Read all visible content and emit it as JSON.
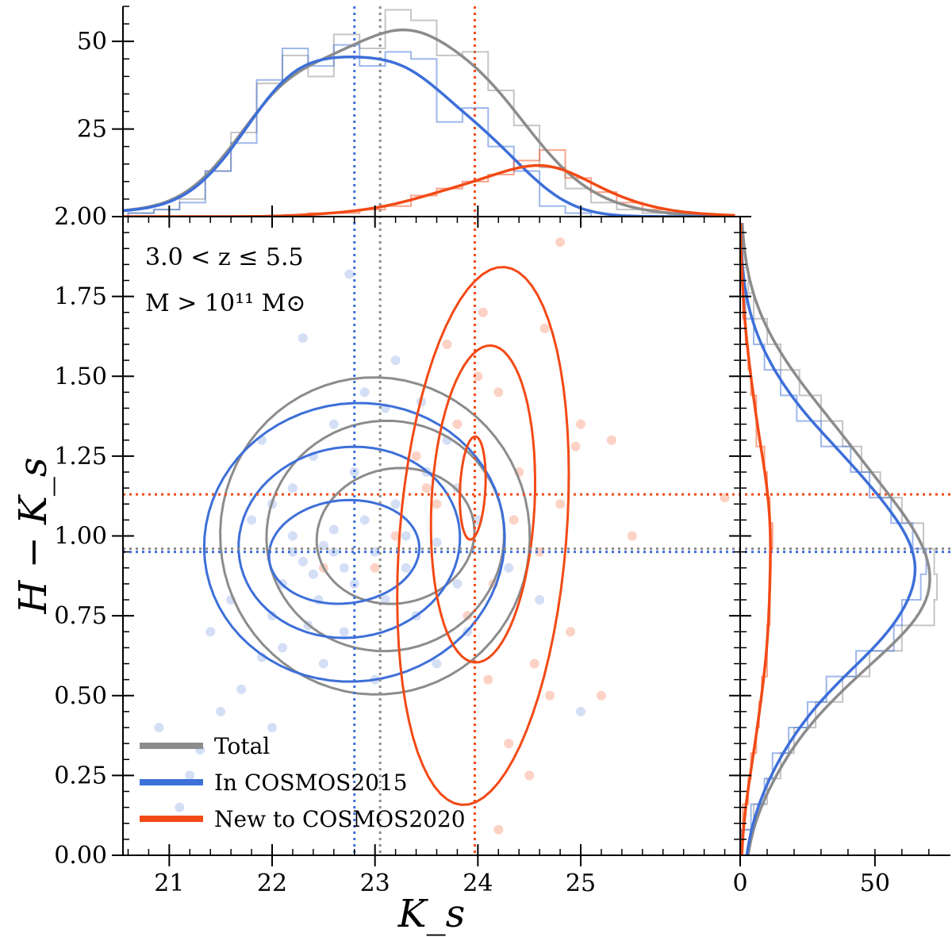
{
  "chart_data": {
    "type": "scatter",
    "xlabel": "K_s",
    "ylabel": "H − K_s",
    "xlim": [
      20.55,
      26.55
    ],
    "ylim": [
      0.0,
      2.0
    ],
    "xticks": [
      "21",
      "22",
      "23",
      "24",
      "25"
    ],
    "yticks": [
      "0.00",
      "0.25",
      "0.50",
      "0.75",
      "1.00",
      "1.25",
      "1.50",
      "1.75",
      "2.00"
    ],
    "annotation": [
      "3.0 < z ≤ 5.5",
      "M > 10¹¹ M⊙"
    ],
    "grid": false,
    "legend_position": "bottom-left",
    "colors": {
      "total": "#8c8c8c",
      "cosmos2015": "#3d6fd8",
      "new2020": "#f24a16"
    },
    "series": [
      {
        "name": "Total",
        "color": "#8c8c8c",
        "median_x": 23.05,
        "median_y": 0.96
      },
      {
        "name": "In COSMOS2015",
        "color": "#3d6fd8",
        "median_x": 22.8,
        "median_y": 0.95
      },
      {
        "name": "New to COSMOS2020",
        "color": "#f24a16",
        "median_x": 23.97,
        "median_y": 1.13
      }
    ],
    "scatter_blue": [
      [
        21.3,
        0.33
      ],
      [
        21.5,
        0.45
      ],
      [
        21.7,
        0.52
      ],
      [
        21.9,
        0.62
      ],
      [
        22.0,
        0.75
      ],
      [
        22.1,
        0.85
      ],
      [
        22.2,
        0.95
      ],
      [
        22.3,
        0.92
      ],
      [
        22.4,
        0.88
      ],
      [
        22.5,
        0.97
      ],
      [
        22.6,
        1.02
      ],
      [
        22.7,
        0.9
      ],
      [
        22.8,
        0.85
      ],
      [
        22.9,
        1.05
      ],
      [
        23.0,
        0.95
      ],
      [
        23.1,
        0.8
      ],
      [
        23.2,
        1.1
      ],
      [
        23.3,
        0.9
      ],
      [
        23.4,
        0.75
      ],
      [
        23.5,
        1.2
      ],
      [
        23.6,
        0.98
      ],
      [
        23.7,
        1.3
      ],
      [
        23.8,
        0.85
      ],
      [
        22.2,
        1.15
      ],
      [
        22.4,
        1.25
      ],
      [
        22.6,
        1.35
      ],
      [
        22.9,
        1.45
      ],
      [
        23.2,
        1.55
      ],
      [
        22.1,
        0.65
      ],
      [
        22.5,
        0.6
      ],
      [
        23.0,
        0.55
      ],
      [
        21.8,
        1.05
      ],
      [
        21.6,
        0.8
      ],
      [
        21.9,
        1.3
      ],
      [
        22.3,
        1.62
      ],
      [
        22.0,
        0.4
      ],
      [
        21.2,
        0.25
      ],
      [
        22.7,
        0.7
      ],
      [
        23.3,
        1.0
      ],
      [
        24.0,
        1.05
      ],
      [
        24.3,
        0.9
      ],
      [
        24.6,
        0.8
      ],
      [
        25.0,
        0.45
      ],
      [
        21.4,
        0.7
      ],
      [
        22.8,
        1.2
      ],
      [
        23.1,
        1.4
      ],
      [
        23.6,
        0.6
      ],
      [
        22.2,
        1.0
      ],
      [
        22.45,
        0.8
      ],
      [
        23.8,
        1.15
      ],
      [
        20.9,
        0.4
      ],
      [
        21.1,
        0.15
      ],
      [
        22.0,
        1.1
      ],
      [
        23.9,
        0.7
      ],
      [
        22.6,
        0.95
      ],
      [
        22.35,
        0.72
      ],
      [
        23.45,
        1.42
      ],
      [
        22.75,
        1.82
      ]
    ],
    "scatter_orange": [
      [
        23.0,
        0.9
      ],
      [
        23.2,
        1.0
      ],
      [
        23.4,
        1.25
      ],
      [
        23.6,
        1.1
      ],
      [
        23.8,
        1.35
      ],
      [
        24.0,
        1.5
      ],
      [
        24.2,
        1.45
      ],
      [
        24.4,
        1.2
      ],
      [
        24.6,
        0.95
      ],
      [
        24.8,
        1.1
      ],
      [
        25.0,
        1.35
      ],
      [
        23.9,
        0.75
      ],
      [
        24.1,
        0.55
      ],
      [
        24.3,
        0.35
      ],
      [
        24.5,
        0.25
      ],
      [
        24.7,
        0.5
      ],
      [
        24.9,
        0.7
      ],
      [
        23.7,
        1.6
      ],
      [
        24.05,
        1.7
      ],
      [
        24.65,
        1.65
      ],
      [
        25.3,
        1.3
      ],
      [
        25.5,
        1.0
      ],
      [
        26.4,
        1.12
      ],
      [
        24.2,
        0.08
      ],
      [
        25.2,
        0.5
      ],
      [
        24.8,
        1.92
      ],
      [
        24.95,
        1.28
      ],
      [
        23.5,
        1.15
      ],
      [
        22.5,
        0.9
      ],
      [
        24.35,
        1.05
      ],
      [
        24.55,
        0.6
      ],
      [
        24.15,
        0.85
      ]
    ],
    "top_hist": {
      "ylim": [
        0,
        60
      ],
      "yticks": [
        "2.00",
        "25",
        "50"
      ],
      "bin_edges": [
        20.6,
        20.85,
        21.1,
        21.35,
        21.6,
        21.85,
        22.1,
        22.35,
        22.6,
        22.85,
        23.1,
        23.35,
        23.6,
        23.85,
        24.1,
        24.35,
        24.6,
        24.85,
        25.1,
        25.35,
        25.6,
        25.85,
        26.1,
        26.35,
        26.55
      ],
      "total": [
        1,
        2,
        5,
        13,
        24,
        38,
        46,
        40,
        52,
        48,
        59,
        56,
        46,
        47,
        36,
        26,
        14,
        8,
        4,
        2,
        1,
        0.5,
        0.3,
        0
      ],
      "cosmos2015": [
        1,
        2,
        4,
        13,
        21,
        39,
        48,
        43,
        49,
        43,
        47,
        45,
        27,
        31,
        20,
        13,
        3,
        1,
        0,
        0,
        0,
        0,
        0,
        0
      ],
      "new2020": [
        0,
        0,
        0,
        0,
        0,
        0,
        0,
        1,
        1,
        2,
        3,
        6,
        8,
        10,
        12,
        16,
        19,
        11,
        7,
        4,
        2,
        1,
        0.5,
        0
      ]
    },
    "right_hist": {
      "xlim": [
        0,
        78
      ],
      "xticks": [
        "0",
        "50"
      ],
      "bin_edges": [
        0.0,
        0.08,
        0.16,
        0.24,
        0.32,
        0.4,
        0.48,
        0.56,
        0.64,
        0.72,
        0.8,
        0.88,
        0.96,
        1.04,
        1.12,
        1.2,
        1.28,
        1.36,
        1.44,
        1.52,
        1.6,
        1.68,
        1.76,
        1.84,
        1.92,
        2.0
      ],
      "total": [
        0.5,
        5,
        10,
        15,
        20,
        28,
        38,
        48,
        60,
        72,
        73,
        72,
        68,
        60,
        52,
        45,
        38,
        30,
        22,
        15,
        10,
        5,
        3,
        1,
        0
      ],
      "cosmos2015": [
        0.5,
        4,
        9,
        12,
        18,
        25,
        32,
        43,
        57,
        60,
        67,
        69,
        64,
        56,
        48,
        41,
        30,
        21,
        15,
        9,
        5,
        2,
        1,
        0,
        0
      ],
      "new2020": [
        0,
        1,
        3,
        4,
        6,
        7,
        8,
        10,
        10,
        11,
        11,
        11,
        12,
        11,
        10,
        9,
        6,
        6,
        4,
        3,
        2,
        1,
        1,
        0,
        0
      ]
    }
  },
  "legend": [
    {
      "label": "Total",
      "color": "#8c8c8c"
    },
    {
      "label": "In COSMOS2015",
      "color": "#3d6fd8"
    },
    {
      "label": "New to COSMOS2020",
      "color": "#f24a16"
    }
  ]
}
